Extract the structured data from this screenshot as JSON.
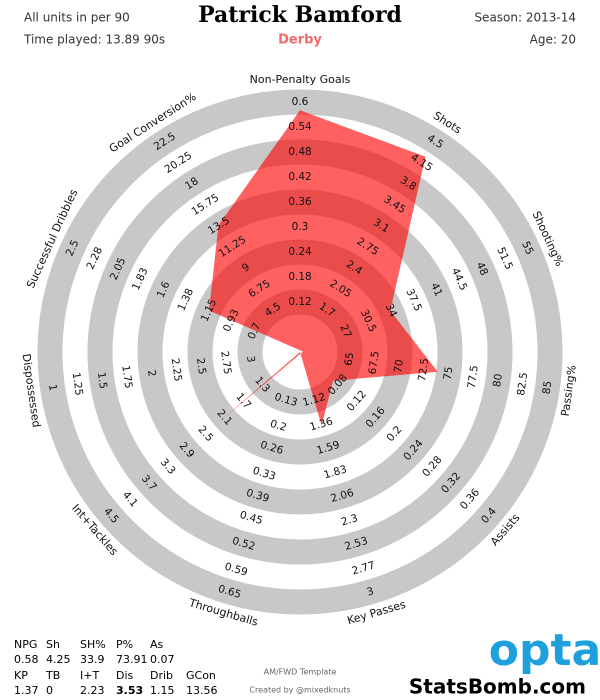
{
  "header": {
    "note": "All units in per 90",
    "time_played": "Time played: 13.89 90s",
    "season": "Season: 2013-14",
    "age": "Age: 20"
  },
  "chart_data": {
    "type": "radar",
    "title": "Patrick Bamford",
    "subtitle": "Derby",
    "subtitle_color": "#f06a6a",
    "ring_color": "#c8c8c8",
    "axes": [
      {
        "name": "Non-Penalty Goals",
        "short": "NPG",
        "lim": [
          0.06,
          0.6
        ],
        "ticks": [
          0.12,
          0.18,
          0.24,
          0.3,
          0.36,
          0.42,
          0.48,
          0.54,
          0.6
        ]
      },
      {
        "name": "Shots",
        "short": "Sh",
        "lim": [
          1.35,
          4.5
        ],
        "ticks": [
          1.7,
          2.05,
          2.4,
          2.75,
          3.1,
          3.45,
          3.8,
          4.15,
          4.5
        ]
      },
      {
        "name": "Shooting%",
        "short": "SH%",
        "lim": [
          23.5,
          55
        ],
        "ticks": [
          27,
          30.5,
          34,
          37.5,
          41,
          44.5,
          48,
          51.5,
          55
        ]
      },
      {
        "name": "Passing%",
        "short": "P%",
        "lim": [
          62.5,
          85
        ],
        "ticks": [
          65,
          67.5,
          70,
          72.5,
          75,
          77.5,
          80,
          82.5,
          85
        ]
      },
      {
        "name": "Assists",
        "short": "As",
        "lim": [
          0.04,
          0.4
        ],
        "ticks": [
          0.08,
          0.12,
          0.16,
          0.2,
          0.24,
          0.28,
          0.32,
          0.36,
          0.4
        ]
      },
      {
        "name": "Key Passes",
        "short": "KP",
        "lim": [
          0.885,
          3
        ],
        "ticks": [
          1.12,
          1.36,
          1.59,
          1.83,
          2.06,
          2.3,
          2.53,
          2.77,
          3
        ]
      },
      {
        "name": "Throughballs",
        "short": "TB",
        "lim": [
          0.065,
          0.65
        ],
        "ticks": [
          0.13,
          0.2,
          0.26,
          0.33,
          0.39,
          0.45,
          0.52,
          0.59,
          0.65
        ]
      },
      {
        "name": "Int+Tackles",
        "short": "I+T",
        "lim": [
          0.9,
          4.5
        ],
        "ticks": [
          1.3,
          1.7,
          2.1,
          2.5,
          2.9,
          3.3,
          3.7,
          4.1,
          4.5
        ]
      },
      {
        "name": "Dispossessed",
        "short": "Dis",
        "lim": [
          3.25,
          1
        ],
        "ticks": [
          3,
          2.75,
          2.5,
          2.25,
          2,
          1.75,
          1.5,
          1.25,
          1
        ]
      },
      {
        "name": "Successful Dribbles",
        "short": "Drib",
        "lim": [
          0.475,
          2.5
        ],
        "ticks": [
          0.7,
          0.93,
          1.15,
          1.38,
          1.6,
          1.83,
          2.05,
          2.28,
          2.5
        ]
      },
      {
        "name": "Goal Conversion%",
        "short": "GCon",
        "lim": [
          2.25,
          22.5
        ],
        "ticks": [
          4.5,
          6.75,
          9,
          11.25,
          13.5,
          15.75,
          18,
          20.25,
          22.5
        ]
      }
    ],
    "series": [
      {
        "color": "#ff0000",
        "values": [
          0.58,
          4.25,
          33.9,
          73.91,
          0.07,
          1.37,
          0,
          2.23,
          3.53,
          1.15,
          13.56
        ],
        "label_colors": [
          "#000000",
          "#000000",
          "#000000",
          "#000000",
          "#000000",
          "#000000",
          "#000000",
          "#000000",
          "#e8202a",
          "#000000",
          "#000000"
        ]
      }
    ]
  },
  "footer": {
    "template": "AM/FWD Template",
    "credit": "Created by @mixedknuts",
    "logo": "opta",
    "site": "StatsBomb.com"
  }
}
